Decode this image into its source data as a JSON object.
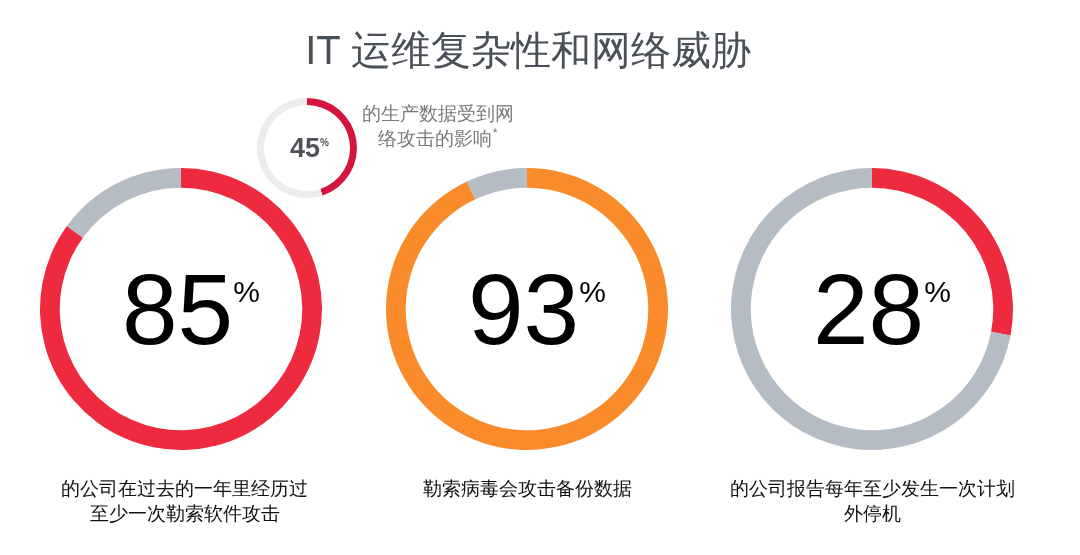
{
  "chart_data": [
    {
      "type": "donut",
      "title": "IT 运维复杂性和网络威胁",
      "categories": [
        null,
        null
      ],
      "values": [
        45,
        55
      ],
      "colors": [
        "#d4163f",
        "#ececec"
      ],
      "value_labels": [
        "45$^{%}$",
        null
      ],
      "annotations": [
        "的生产数据受到网络攻击的影响$^{*}$"
      ]
    },
    {
      "type": "donut",
      "categories": [
        null,
        null
      ],
      "values": [
        85,
        15
      ],
      "colors": [
        "#ee2a3f",
        "#b5bcc4"
      ],
      "value_labels": [
        "85$^{%}$",
        null
      ],
      "annotations": [
        "的公司在过去的一年里经历过至少一次勒索软件攻击"
      ]
    },
    {
      "type": "donut",
      "categories": [
        null,
        null
      ],
      "values": [
        93,
        7
      ],
      "colors": [
        "#f98b2a",
        "#b5bcc4"
      ],
      "value_labels": [
        "93$^{%}$",
        null
      ],
      "annotations": [
        "勒索病毒会攻击备份数据"
      ]
    },
    {
      "type": "donut",
      "categories": [
        null,
        null
      ],
      "values": [
        28,
        72
      ],
      "colors": [
        "#ee2a3f",
        "#b5bcc4"
      ],
      "value_labels": [
        "28$^{%}$",
        null
      ],
      "annotations": [
        "的公司报告每年至少发生一次计划外停机"
      ]
    }
  ]
}
